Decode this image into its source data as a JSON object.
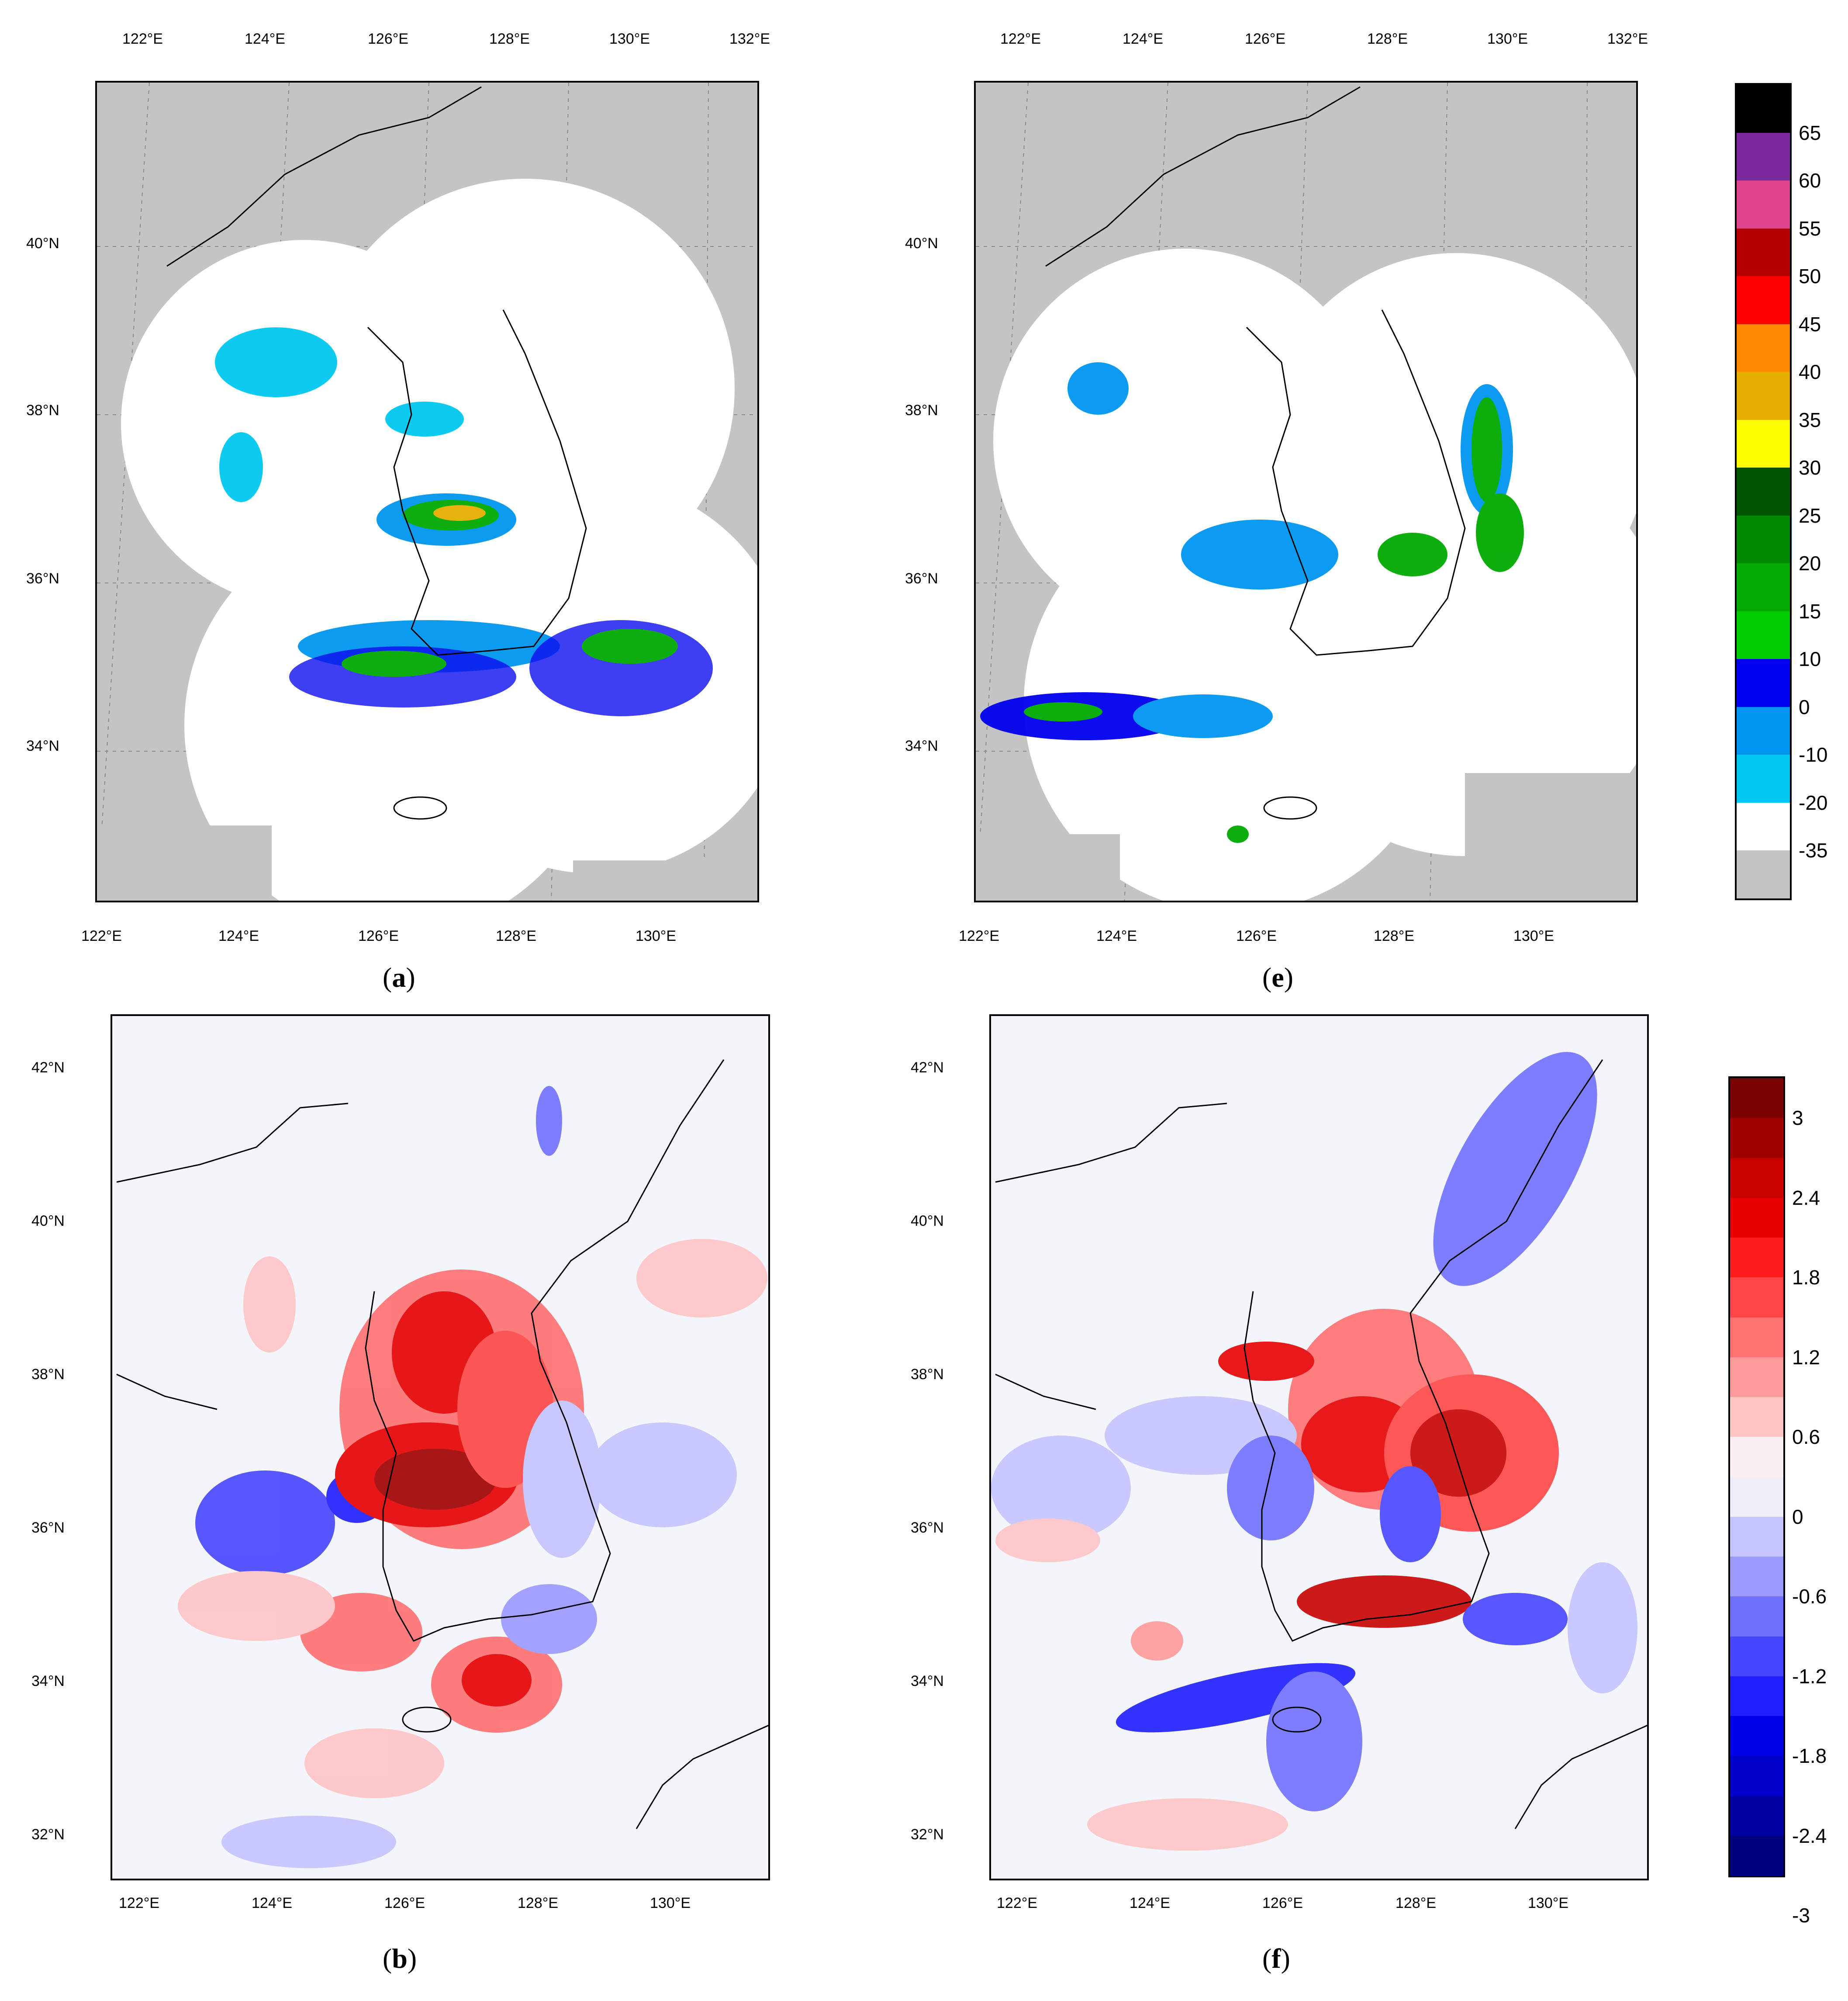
{
  "panels": {
    "a": {
      "caption_open": "(",
      "caption_letter": "a",
      "caption_close": ")"
    },
    "e": {
      "caption_open": "(",
      "caption_letter": "e",
      "caption_close": ")"
    },
    "b": {
      "caption_open": "(",
      "caption_letter": "b",
      "caption_close": ")"
    },
    "f": {
      "caption_open": "(",
      "caption_letter": "f",
      "caption_close": ")"
    }
  },
  "top_axes": {
    "top_lon": [
      "122°E",
      "124°E",
      "126°E",
      "128°E",
      "130°E",
      "132°E"
    ],
    "bottom_lon": [
      "122°E",
      "124°E",
      "126°E",
      "128°E",
      "130°E"
    ],
    "lat": [
      "40°N",
      "38°N",
      "36°N",
      "34°N"
    ]
  },
  "bottom_axes": {
    "lon": [
      "122°E",
      "124°E",
      "126°E",
      "128°E",
      "130°E"
    ],
    "lat": [
      "42°N",
      "40°N",
      "38°N",
      "36°N",
      "34°N",
      "32°N"
    ]
  },
  "reflectivity_colorbar": {
    "labels": [
      "65",
      "60",
      "55",
      "50",
      "45",
      "40",
      "35",
      "30",
      "25",
      "20",
      "15",
      "10",
      "0",
      "-10",
      "-20",
      "-35"
    ],
    "colors": [
      "#000000",
      "#7b2a9c",
      "#e0458c",
      "#b40000",
      "#ff0000",
      "#ff8800",
      "#e6ae00",
      "#ffff00",
      "#005400",
      "#008800",
      "#00aa00",
      "#00cc00",
      "#0000ee",
      "#0096f0",
      "#00c8f0",
      "#ffffff",
      "#c4c4c4"
    ]
  },
  "anomaly_colorbar": {
    "labels": [
      "3",
      "2.4",
      "1.8",
      "1.2",
      "0.6",
      "0",
      "-0.6",
      "-1.2",
      "-1.8",
      "-2.4",
      "-3"
    ],
    "colors": [
      "#7a0000",
      "#a00000",
      "#c80000",
      "#e60000",
      "#ff1e1e",
      "#ff4646",
      "#ff7070",
      "#ff9a9a",
      "#ffc4c4",
      "#fbeeee",
      "#eeeefb",
      "#c4c4ff",
      "#9a9aff",
      "#7070ff",
      "#4646ff",
      "#1e1eff",
      "#0000e6",
      "#0000c8",
      "#0000a0",
      "#00007a"
    ]
  }
}
